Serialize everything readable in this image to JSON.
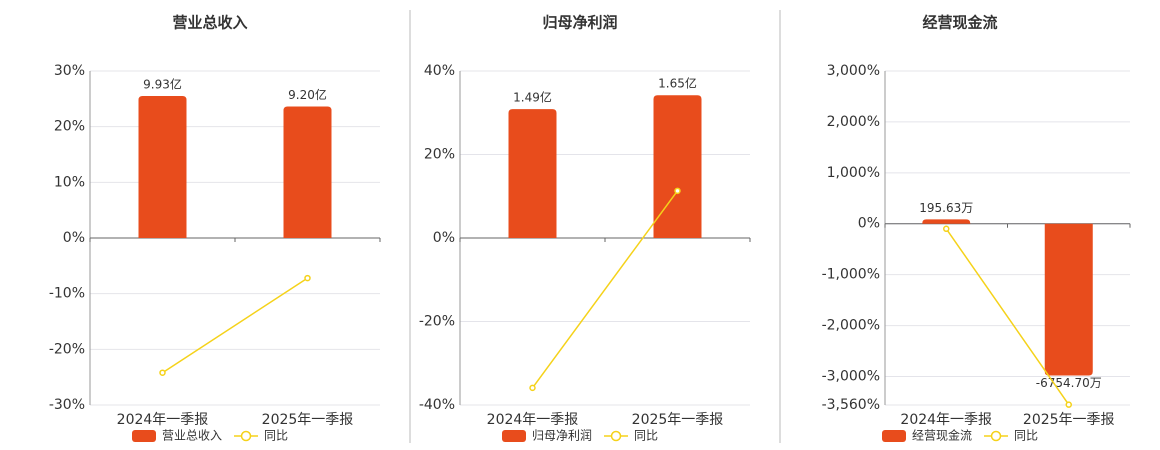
{
  "chart_data": [
    {
      "type": "bar",
      "title": "营业总收入",
      "categories": [
        "2024年一季报",
        "2025年一季报"
      ],
      "series": [
        {
          "name": "营业总收入",
          "color": "#e84c1c",
          "axis": "y2",
          "values": [
            9.93,
            9.2
          ],
          "value_labels": [
            "9.93亿",
            "9.20亿"
          ]
        },
        {
          "name": "同比",
          "type": "line",
          "color": "#f5d21a",
          "values": [
            -24.2,
            -7.2
          ]
        }
      ],
      "ylim": [
        -30,
        30
      ],
      "yticks": [
        {
          "value": -30,
          "label": "-30%"
        },
        {
          "value": -20,
          "label": "-20%"
        },
        {
          "value": -10,
          "label": "-10%"
        },
        {
          "value": 0,
          "label": "0%"
        },
        {
          "value": 10,
          "label": "10%"
        },
        {
          "value": 20,
          "label": "20%"
        },
        {
          "value": 30,
          "label": "30%"
        }
      ],
      "y2lim": [
        -11.68,
        11.68
      ],
      "grid": true
    },
    {
      "type": "bar",
      "title": "归母净利润",
      "categories": [
        "2024年一季报",
        "2025年一季报"
      ],
      "series": [
        {
          "name": "归母净利润",
          "color": "#e84c1c",
          "axis": "y2",
          "values": [
            1.49,
            1.65
          ],
          "value_labels": [
            "1.49亿",
            "1.65亿"
          ]
        },
        {
          "name": "同比",
          "type": "line",
          "color": "#f5d21a",
          "values": [
            -35.9,
            11.3
          ]
        }
      ],
      "ylim": [
        -40,
        40
      ],
      "yticks": [
        {
          "value": -40,
          "label": "-40%"
        },
        {
          "value": -20,
          "label": "-20%"
        },
        {
          "value": 0,
          "label": "0%"
        },
        {
          "value": 20,
          "label": "20%"
        },
        {
          "value": 40,
          "label": "40%"
        }
      ],
      "y2lim": [
        -1.93,
        1.93
      ],
      "grid": true
    },
    {
      "type": "bar",
      "title": "经营现金流",
      "categories": [
        "2024年一季报",
        "2025年一季报"
      ],
      "series": [
        {
          "name": "经营现金流",
          "color": "#e84c1c",
          "axis": "y2",
          "values": [
            195.63,
            -6754.7
          ],
          "value_labels": [
            "195.63万",
            "-6754.70万"
          ]
        },
        {
          "name": "同比",
          "type": "line",
          "color": "#f5d21a",
          "values": [
            -99,
            -3553
          ]
        }
      ],
      "ylim": [
        -3560,
        3000
      ],
      "yticks": [
        {
          "value": -3560,
          "label": "-3,560%"
        },
        {
          "value": -3000,
          "label": "-3,000%"
        },
        {
          "value": -2000,
          "label": "-2,000%"
        },
        {
          "value": -1000,
          "label": "-1,000%"
        },
        {
          "value": 0,
          "label": "0%"
        },
        {
          "value": 1000,
          "label": "1,000%"
        },
        {
          "value": 2000,
          "label": "2,000%"
        },
        {
          "value": 3000,
          "label": "3,000%"
        }
      ],
      "y2lim": [
        -8070,
        6800
      ],
      "grid": true
    }
  ]
}
